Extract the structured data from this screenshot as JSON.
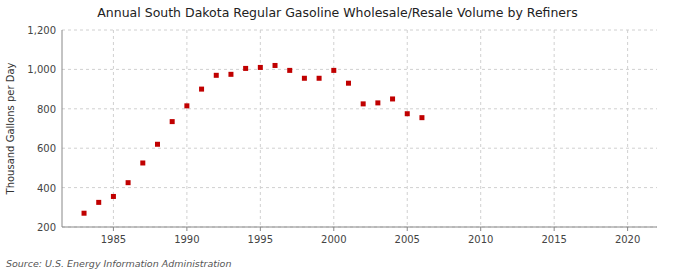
{
  "chart_data": {
    "type": "scatter",
    "title": "Annual South Dakota Regular Gasoline Wholesale/Resale Volume by Refiners",
    "y_label": "Thousand Gallons per Day",
    "source": "Source: U.S. Energy Information Administration",
    "x": [
      1983,
      1984,
      1985,
      1986,
      1987,
      1988,
      1989,
      1990,
      1991,
      1992,
      1993,
      1994,
      1995,
      1996,
      1997,
      1998,
      1999,
      2000,
      2001,
      2002,
      2003,
      2004,
      2005,
      2006
    ],
    "values": [
      270,
      325,
      355,
      425,
      525,
      620,
      735,
      815,
      900,
      970,
      975,
      1005,
      1010,
      1020,
      995,
      955,
      955,
      995,
      930,
      825,
      830,
      850,
      775,
      755
    ],
    "color": "#c00000",
    "marker": "square",
    "xlim": [
      1981.5,
      2022
    ],
    "ylim": [
      200,
      1200
    ],
    "xticks": [
      1985,
      1990,
      1995,
      2000,
      2005,
      2010,
      2015,
      2020
    ],
    "yticks": [
      200,
      400,
      600,
      800,
      {
        "value": 1000,
        "label": "1,000"
      },
      {
        "value": 1200,
        "label": "1,200"
      }
    ],
    "grid": true
  }
}
